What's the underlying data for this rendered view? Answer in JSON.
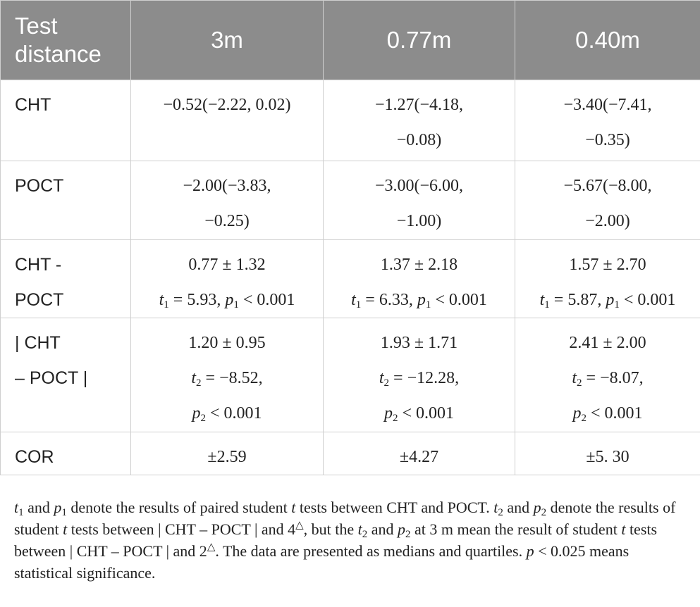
{
  "table": {
    "header": [
      "Test distance",
      "3m",
      "0.77m",
      "0.40m"
    ],
    "rows": [
      {
        "label": [
          "CHT"
        ],
        "cells": [
          [
            [
              "−0.52(−2.22, 0.02)"
            ]
          ],
          [
            [
              "−1.27(−4.18,"
            ],
            [
              "−0.08)"
            ]
          ],
          [
            [
              "−3.40(−7.41,"
            ],
            [
              "−0.35)"
            ]
          ]
        ]
      },
      {
        "label": [
          "POCT"
        ],
        "cells": [
          [
            [
              "−2.00(−3.83,"
            ],
            [
              "−0.25)"
            ]
          ],
          [
            [
              "−3.00(−6.00,"
            ],
            [
              "−1.00)"
            ]
          ],
          [
            [
              "−5.67(−8.00,"
            ],
            [
              "−2.00)"
            ]
          ]
        ]
      },
      {
        "label": [
          "CHT -",
          "POCT"
        ],
        "cells": [
          [
            [
              "0.77 ± 1.32"
            ],
            [
              {
                "text": "t",
                "style": "italic"
              },
              {
                "text": "1",
                "style": "sub"
              },
              " = 5.93, ",
              {
                "text": "p",
                "style": "italic"
              },
              {
                "text": "1",
                "style": "sub"
              },
              " < 0.001"
            ]
          ],
          [
            [
              "1.37 ± 2.18"
            ],
            [
              {
                "text": "t",
                "style": "italic"
              },
              {
                "text": "1",
                "style": "sub"
              },
              " = 6.33, ",
              {
                "text": "p",
                "style": "italic"
              },
              {
                "text": "1",
                "style": "sub"
              },
              " < 0.001"
            ]
          ],
          [
            [
              "1.57 ± 2.70"
            ],
            [
              {
                "text": "t",
                "style": "italic"
              },
              {
                "text": "1",
                "style": "sub"
              },
              " = 5.87, ",
              {
                "text": "p",
                "style": "italic"
              },
              {
                "text": "1",
                "style": "sub"
              },
              " < 0.001"
            ]
          ]
        ]
      },
      {
        "label": [
          "| CHT",
          "– POCT |"
        ],
        "cells": [
          [
            [
              "1.20 ± 0.95"
            ],
            [
              {
                "text": "t",
                "style": "italic"
              },
              {
                "text": "2",
                "style": "sub"
              },
              " = −8.52,"
            ],
            [
              {
                "text": "p",
                "style": "italic"
              },
              {
                "text": "2",
                "style": "sub"
              },
              " < 0.001"
            ]
          ],
          [
            [
              "1.93 ± 1.71"
            ],
            [
              {
                "text": "t",
                "style": "italic"
              },
              {
                "text": "2",
                "style": "sub"
              },
              " = −12.28,"
            ],
            [
              {
                "text": "p",
                "style": "italic"
              },
              {
                "text": "2",
                "style": "sub"
              },
              " < 0.001"
            ]
          ],
          [
            [
              "2.41 ± 2.00"
            ],
            [
              {
                "text": "t",
                "style": "italic"
              },
              {
                "text": "2",
                "style": "sub"
              },
              " = −8.07,"
            ],
            [
              {
                "text": "p",
                "style": "italic"
              },
              {
                "text": "2",
                "style": "sub"
              },
              " < 0.001"
            ]
          ]
        ]
      },
      {
        "label": [
          "COR"
        ],
        "cells": [
          [
            [
              "±2.59"
            ]
          ],
          [
            [
              "±4.27"
            ]
          ],
          [
            [
              "±5. 30"
            ]
          ]
        ]
      }
    ]
  },
  "footnote": [
    {
      "text": "t",
      "style": "italic"
    },
    {
      "text": "1",
      "style": "sub"
    },
    " and ",
    {
      "text": "p",
      "style": "italic"
    },
    {
      "text": "1",
      "style": "sub"
    },
    " denote the results of paired student ",
    {
      "text": "t",
      "style": "italic"
    },
    " tests between CHT and POCT. ",
    {
      "text": "t",
      "style": "italic"
    },
    {
      "text": "2",
      "style": "sub"
    },
    " and ",
    {
      "text": "p",
      "style": "italic"
    },
    {
      "text": "2",
      "style": "sub"
    },
    " denote the results of student ",
    {
      "text": "t",
      "style": "italic"
    },
    " tests between | CHT – POCT | and 4",
    {
      "text": "△",
      "style": "sup"
    },
    ", but the ",
    {
      "text": "t",
      "style": "italic"
    },
    {
      "text": "2",
      "style": "sub"
    },
    " and ",
    {
      "text": "p",
      "style": "italic"
    },
    {
      "text": "2",
      "style": "sub"
    },
    " at 3 m mean the result of student ",
    {
      "text": "t",
      "style": "italic"
    },
    " tests between | CHT – POCT | and 2",
    {
      "text": "△",
      "style": "sup"
    },
    ". The data are presented as medians and quartiles. ",
    {
      "text": "p",
      "style": "italic"
    },
    " < 0.025 means statistical significance."
  ]
}
